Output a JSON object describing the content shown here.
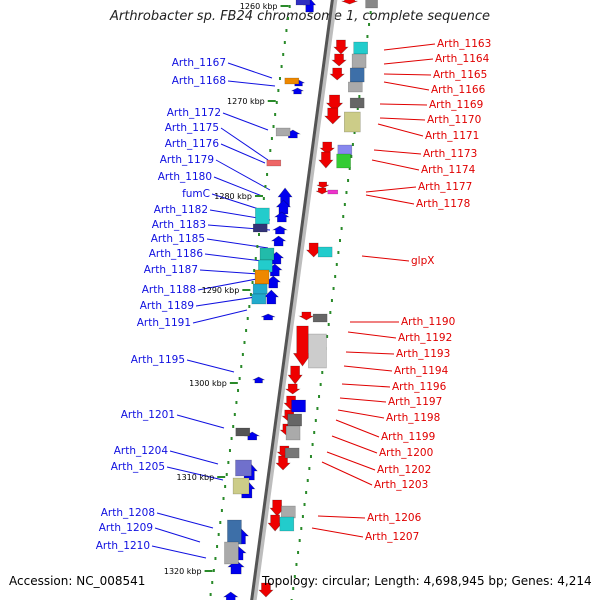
{
  "title": "Arthrobacter sp. FB24 chromosome 1, complete sequence",
  "footer": {
    "accession": "Accession: NC_008541",
    "topology": "Topology: circular; Length: 4,698,945 bp; Genes: 4,214"
  },
  "colors": {
    "left_label": "#1010e0",
    "right_label": "#e00000",
    "forward_gene": "#0000ee",
    "reverse_gene": "#ee0000",
    "backbone": "#555555"
  },
  "scale_labels": [
    "1260 kbp",
    "1270 kbp",
    "1280 kbp",
    "1290 kbp",
    "1300 kbp",
    "1310 kbp",
    "1320 kbp"
  ],
  "left_genes": [
    "Arth_1167",
    "Arth_1168",
    "Arth_1172",
    "Arth_1175",
    "Arth_1176",
    "Arth_1179",
    "Arth_1180",
    "fumC",
    "Arth_1182",
    "Arth_1183",
    "Arth_1185",
    "Arth_1186",
    "Arth_1187",
    "Arth_1188",
    "Arth_1189",
    "Arth_1191",
    "Arth_1195",
    "Arth_1201",
    "Arth_1204",
    "Arth_1205",
    "Arth_1208",
    "Arth_1209",
    "Arth_1210"
  ],
  "right_genes": [
    "Arth_1163",
    "Arth_1164",
    "Arth_1165",
    "Arth_1166",
    "Arth_1169",
    "Arth_1170",
    "Arth_1171",
    "Arth_1173",
    "Arth_1174",
    "Arth_1177",
    "Arth_1178",
    "glpX",
    "Arth_1190",
    "Arth_1192",
    "Arth_1193",
    "Arth_1194",
    "Arth_1196",
    "Arth_1197",
    "Arth_1198",
    "Arth_1199",
    "Arth_1200",
    "Arth_1202",
    "Arth_1203",
    "Arth_1206",
    "Arth_1207"
  ]
}
